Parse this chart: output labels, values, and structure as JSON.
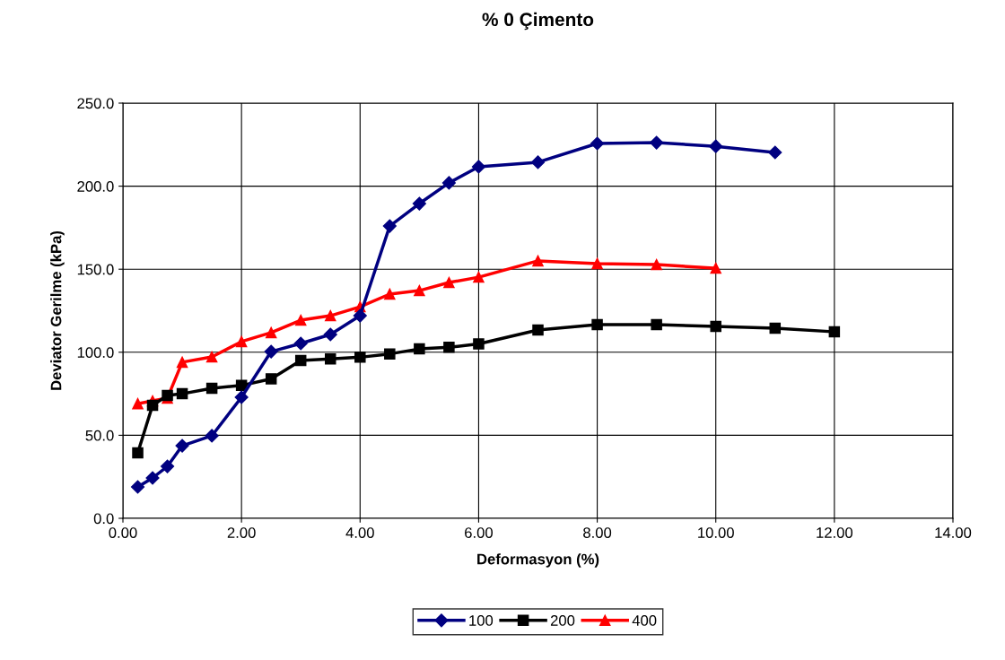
{
  "chart_data": {
    "type": "line",
    "title": "% 0 Çimento",
    "xlabel": "Deformasyon (%)",
    "ylabel": "Deviator Gerilme (kPa)",
    "xlim": [
      0,
      14
    ],
    "xticks": [
      {
        "value": 0,
        "label": "0.00"
      },
      {
        "value": 2,
        "label": "2.00"
      },
      {
        "value": 4,
        "label": "4.00"
      },
      {
        "value": 6,
        "label": "6.00"
      },
      {
        "value": 8,
        "label": "8.00"
      },
      {
        "value": 10,
        "label": "10.00"
      },
      {
        "value": 12,
        "label": "12.00"
      },
      {
        "value": 14,
        "label": "14.00"
      }
    ],
    "ylim": [
      0,
      250
    ],
    "yticks": [
      {
        "value": 0,
        "label": "0.0"
      },
      {
        "value": 50,
        "label": "50.0"
      },
      {
        "value": 100,
        "label": "100.0"
      },
      {
        "value": 150,
        "label": "150.0"
      },
      {
        "value": 200,
        "label": "200.0"
      },
      {
        "value": 250,
        "label": "250.0"
      }
    ],
    "grid": true,
    "legend": "bottom",
    "series": [
      {
        "name": "100",
        "color": "#000080",
        "marker": "diamond",
        "x": [
          0.25,
          0.5,
          0.75,
          1,
          1.5,
          2,
          2.5,
          3,
          3.5,
          4,
          4.5,
          5,
          5.5,
          6,
          7,
          8,
          9,
          10,
          11
        ],
        "values": [
          18.9,
          24.3,
          31.3,
          43.7,
          49.7,
          72.9,
          100.4,
          105.3,
          110.7,
          122,
          176,
          189.5,
          202,
          211.7,
          214.4,
          225.7,
          226.2,
          224,
          220.3
        ]
      },
      {
        "name": "200",
        "color": "#000000",
        "marker": "square",
        "x": [
          0.25,
          0.5,
          0.75,
          1,
          1.5,
          2,
          2.5,
          3,
          3.5,
          4,
          4.5,
          5,
          5.5,
          6,
          7,
          8,
          9,
          10,
          11,
          12
        ],
        "values": [
          39.4,
          68,
          74,
          75,
          78.3,
          80,
          84,
          95,
          96,
          97,
          99,
          102,
          103,
          105,
          113.4,
          116.6,
          116.6,
          115.5,
          114.5,
          112.3
        ]
      },
      {
        "name": "400",
        "color": "#ff0000",
        "marker": "triangle",
        "x": [
          0.25,
          0.5,
          0.75,
          1,
          1.5,
          2,
          2.5,
          3,
          3.5,
          4,
          4.5,
          5,
          5.5,
          6,
          7,
          8,
          9,
          10
        ],
        "values": [
          69,
          70.7,
          72.4,
          94,
          97.2,
          106.4,
          111.8,
          119.3,
          122,
          127.4,
          135,
          137.1,
          142,
          145.2,
          155,
          153.4,
          152.8,
          150.6
        ]
      }
    ]
  }
}
